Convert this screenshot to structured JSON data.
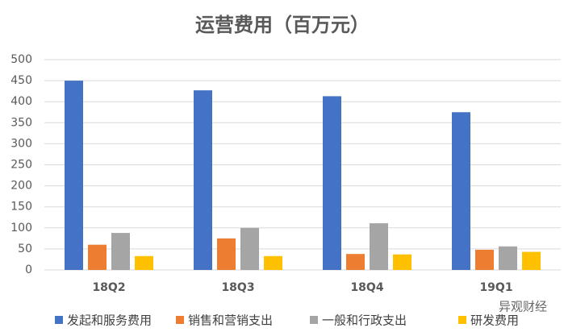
{
  "chart_data": {
    "type": "bar",
    "title": "运营费用（百万元）",
    "categories": [
      "18Q2",
      "18Q3",
      "18Q4",
      "19Q1"
    ],
    "series": [
      {
        "name": "发起和服务费用",
        "color": "#4472c4",
        "values": [
          450,
          427,
          413,
          375
        ]
      },
      {
        "name": "销售和营销支出",
        "color": "#ed7d31",
        "values": [
          60,
          75,
          38,
          48
        ]
      },
      {
        "name": "一般和行政支出",
        "color": "#a5a5a5",
        "values": [
          88,
          100,
          111,
          56
        ]
      },
      {
        "name": "研发费用",
        "color": "#ffc000",
        "values": [
          33,
          33,
          37,
          43
        ]
      }
    ],
    "ylim": [
      0,
      500
    ],
    "yticks": [
      0,
      50,
      100,
      150,
      200,
      250,
      300,
      350,
      400,
      450,
      500
    ],
    "grid": true,
    "legend": "bottom",
    "watermark": "异观财经"
  }
}
